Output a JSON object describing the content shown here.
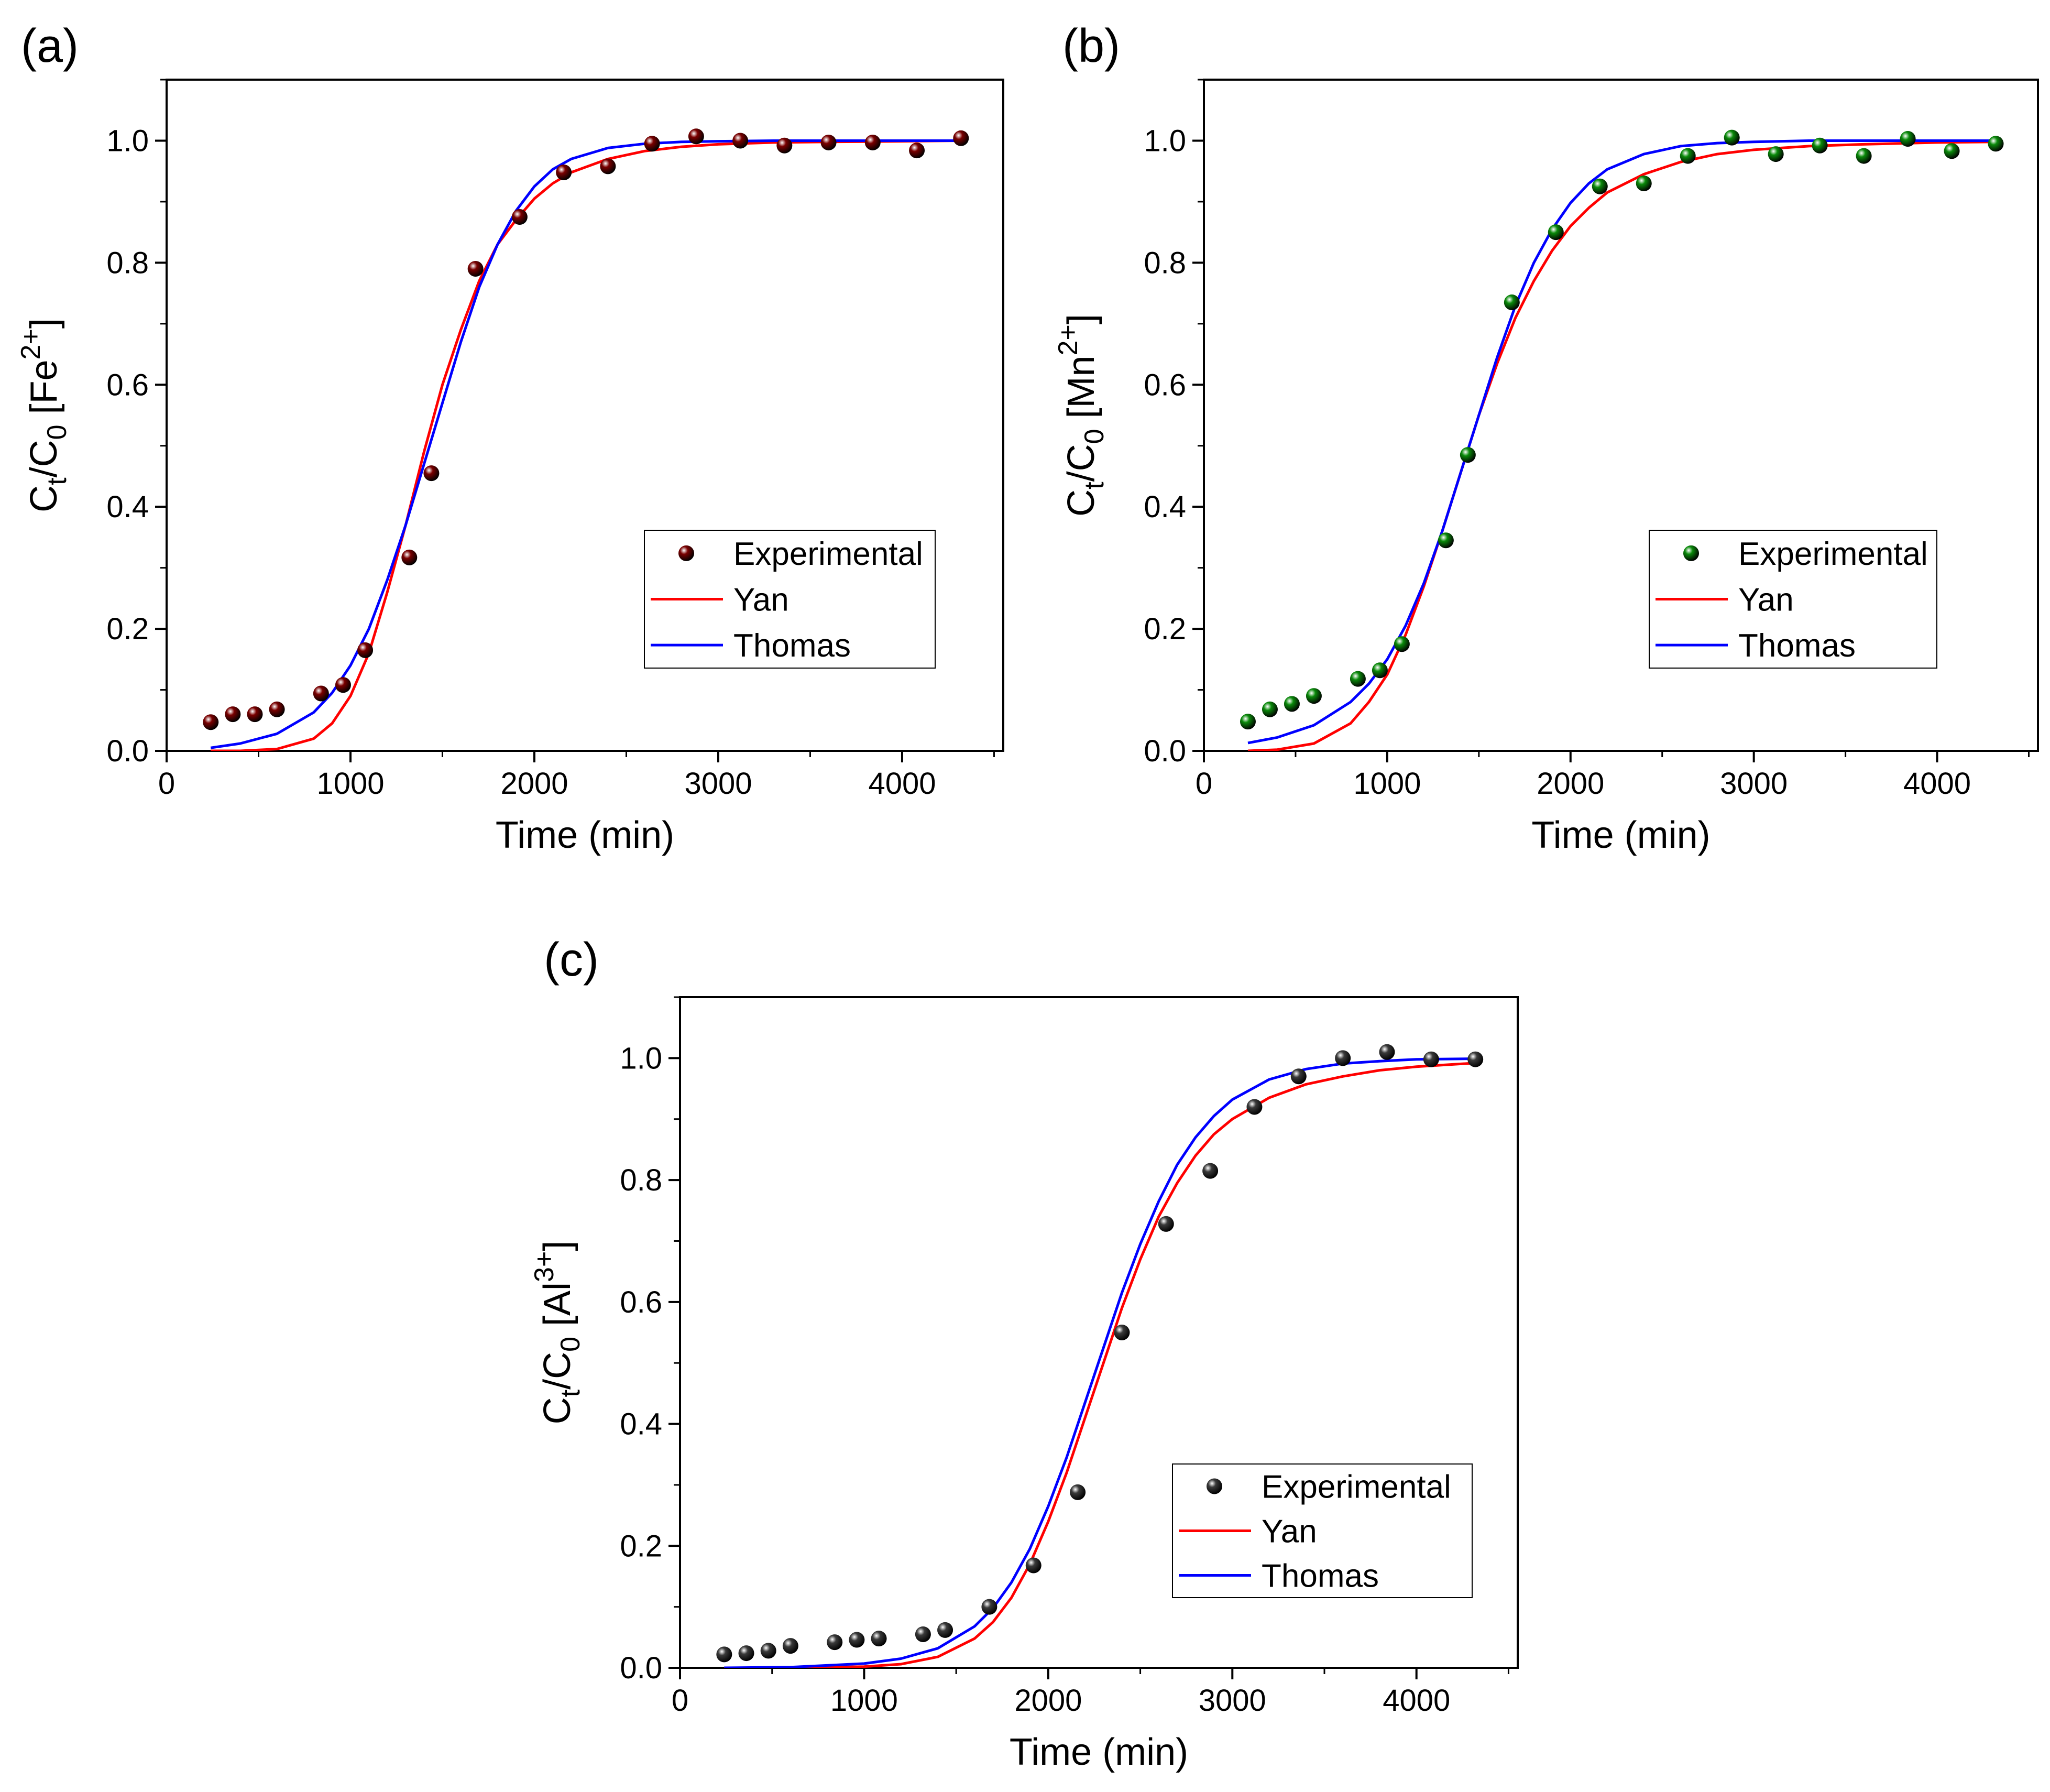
{
  "chart_data": [
    {
      "type": "scatter",
      "panel_label": "(a)",
      "xlabel": "Time (min)",
      "ylabel": {
        "main": "C",
        "sub_t": "t",
        "slash": "/C",
        "sub_0": "0",
        "bracket_open": " [Fe",
        "sup": "2+",
        "bracket_close": "]"
      },
      "xlim": [
        0,
        4550
      ],
      "ylim": [
        0,
        1.1
      ],
      "xticks": [
        "0",
        "1000",
        "2000",
        "3000",
        "4000"
      ],
      "yticks": [
        "0.0",
        "0.2",
        "0.4",
        "0.6",
        "0.8",
        "1.0"
      ],
      "legend": {
        "position": "lower-right",
        "entries": [
          "Experimental",
          "Yan",
          "Thomas"
        ]
      },
      "colors": {
        "experimental": "#7a0000",
        "yan": "#ff0000",
        "thomas": "#0000ff"
      },
      "series": [
        {
          "name": "Experimental",
          "kind": "points",
          "x": [
            240,
            360,
            480,
            600,
            840,
            960,
            1080,
            1320,
            1440,
            1680,
            1920,
            2160,
            2400,
            2640,
            2880,
            3120,
            3360,
            3600,
            3840,
            4080,
            4320
          ],
          "y": [
            0.047,
            0.06,
            0.06,
            0.068,
            0.094,
            0.108,
            0.165,
            0.317,
            0.455,
            0.79,
            0.875,
            0.948,
            0.958,
            0.995,
            1.007,
            1.0,
            0.992,
            0.997,
            0.997,
            0.984,
            1.004
          ]
        },
        {
          "name": "Yan",
          "kind": "line",
          "x": [
            240,
            400,
            600,
            800,
            900,
            1000,
            1100,
            1200,
            1300,
            1400,
            1500,
            1600,
            1700,
            1800,
            1900,
            2000,
            2100,
            2200,
            2400,
            2600,
            2800,
            3000,
            3300,
            3600,
            4000,
            4320
          ],
          "y": [
            0.0,
            0.0,
            0.003,
            0.02,
            0.045,
            0.09,
            0.16,
            0.26,
            0.37,
            0.49,
            0.6,
            0.69,
            0.77,
            0.83,
            0.87,
            0.905,
            0.93,
            0.948,
            0.97,
            0.983,
            0.99,
            0.994,
            0.997,
            0.998,
            0.999,
            1.0
          ]
        },
        {
          "name": "Thomas",
          "kind": "line",
          "x": [
            240,
            400,
            600,
            800,
            900,
            1000,
            1100,
            1200,
            1300,
            1400,
            1500,
            1600,
            1700,
            1800,
            1900,
            2000,
            2100,
            2200,
            2400,
            2600,
            2800,
            3000,
            3300,
            3600,
            4000,
            4320
          ],
          "y": [
            0.005,
            0.012,
            0.028,
            0.063,
            0.095,
            0.14,
            0.2,
            0.28,
            0.37,
            0.47,
            0.57,
            0.67,
            0.76,
            0.83,
            0.885,
            0.925,
            0.953,
            0.97,
            0.988,
            0.995,
            0.998,
            0.999,
            1.0,
            1.0,
            1.0,
            1.0
          ]
        }
      ]
    },
    {
      "type": "scatter",
      "panel_label": "(b)",
      "xlabel": "Time (min)",
      "ylabel": {
        "main": "C",
        "sub_t": "t",
        "slash": "/C",
        "sub_0": "0",
        "bracket_open": " [Mn",
        "sup": "2+",
        "bracket_close": "]"
      },
      "xlim": [
        0,
        4550
      ],
      "ylim": [
        0,
        1.1
      ],
      "xticks": [
        "0",
        "1000",
        "2000",
        "3000",
        "4000"
      ],
      "yticks": [
        "0.0",
        "0.2",
        "0.4",
        "0.6",
        "0.8",
        "1.0"
      ],
      "legend": {
        "position": "lower-right",
        "entries": [
          "Experimental",
          "Yan",
          "Thomas"
        ]
      },
      "colors": {
        "experimental": "#0a8a0a",
        "yan": "#ff0000",
        "thomas": "#0000ff"
      },
      "series": [
        {
          "name": "Experimental",
          "kind": "points",
          "x": [
            240,
            360,
            480,
            600,
            840,
            960,
            1080,
            1320,
            1440,
            1680,
            1920,
            2160,
            2400,
            2640,
            2880,
            3120,
            3360,
            3600,
            3840,
            4080,
            4320
          ],
          "y": [
            0.048,
            0.068,
            0.077,
            0.09,
            0.118,
            0.132,
            0.175,
            0.345,
            0.485,
            0.735,
            0.85,
            0.925,
            0.93,
            0.975,
            1.005,
            0.978,
            0.992,
            0.975,
            1.003,
            0.983,
            0.995
          ]
        },
        {
          "name": "Yan",
          "kind": "line",
          "x": [
            240,
            400,
            600,
            800,
            900,
            1000,
            1100,
            1200,
            1300,
            1400,
            1500,
            1600,
            1700,
            1800,
            1900,
            2000,
            2100,
            2200,
            2400,
            2600,
            2800,
            3000,
            3300,
            3600,
            4000,
            4320
          ],
          "y": [
            0.0,
            0.002,
            0.012,
            0.045,
            0.08,
            0.125,
            0.19,
            0.27,
            0.36,
            0.455,
            0.55,
            0.635,
            0.71,
            0.77,
            0.82,
            0.86,
            0.89,
            0.915,
            0.945,
            0.965,
            0.978,
            0.985,
            0.991,
            0.994,
            0.997,
            0.998
          ]
        },
        {
          "name": "Thomas",
          "kind": "line",
          "x": [
            240,
            400,
            600,
            800,
            900,
            1000,
            1100,
            1200,
            1300,
            1400,
            1500,
            1600,
            1700,
            1800,
            1900,
            2000,
            2100,
            2200,
            2400,
            2600,
            2800,
            3000,
            3300,
            3600,
            4000,
            4320
          ],
          "y": [
            0.013,
            0.022,
            0.042,
            0.08,
            0.11,
            0.15,
            0.205,
            0.275,
            0.36,
            0.455,
            0.55,
            0.645,
            0.73,
            0.8,
            0.855,
            0.898,
            0.93,
            0.953,
            0.978,
            0.991,
            0.996,
            0.998,
            1.0,
            1.0,
            1.0,
            1.0
          ]
        }
      ]
    },
    {
      "type": "scatter",
      "panel_label": "(c)",
      "xlabel": "Time (min)",
      "ylabel": {
        "main": "C",
        "sub_t": "t",
        "slash": "/C",
        "sub_0": "0",
        "bracket_open": " [Al",
        "sup": "3+",
        "bracket_close": "]"
      },
      "xlim": [
        0,
        4550
      ],
      "ylim": [
        0,
        1.1
      ],
      "xticks": [
        "0",
        "1000",
        "2000",
        "3000",
        "4000"
      ],
      "yticks": [
        "0.0",
        "0.2",
        "0.4",
        "0.6",
        "0.8",
        "1.0"
      ],
      "legend": {
        "position": "lower-right",
        "entries": [
          "Experimental",
          "Yan",
          "Thomas"
        ]
      },
      "colors": {
        "experimental": "#3a3a3a",
        "yan": "#ff0000",
        "thomas": "#0000ff"
      },
      "series": [
        {
          "name": "Experimental",
          "kind": "points",
          "x": [
            240,
            360,
            480,
            600,
            840,
            960,
            1080,
            1320,
            1440,
            1680,
            1920,
            2160,
            2400,
            2640,
            2880,
            3120,
            3360,
            3600,
            3840,
            4080,
            4320
          ],
          "y": [
            0.022,
            0.024,
            0.028,
            0.036,
            0.042,
            0.046,
            0.048,
            0.055,
            0.062,
            0.1,
            0.168,
            0.288,
            0.55,
            0.728,
            0.815,
            0.92,
            0.97,
            1.0,
            1.01,
            0.998,
            0.998
          ]
        },
        {
          "name": "Yan",
          "kind": "line",
          "x": [
            240,
            600,
            1000,
            1200,
            1400,
            1600,
            1700,
            1800,
            1900,
            2000,
            2100,
            2200,
            2300,
            2400,
            2500,
            2600,
            2700,
            2800,
            2900,
            3000,
            3200,
            3400,
            3600,
            3800,
            4000,
            4320
          ],
          "y": [
            0.0,
            0.0,
            0.002,
            0.006,
            0.018,
            0.048,
            0.075,
            0.115,
            0.17,
            0.24,
            0.32,
            0.41,
            0.5,
            0.59,
            0.67,
            0.74,
            0.795,
            0.84,
            0.875,
            0.9,
            0.935,
            0.957,
            0.97,
            0.98,
            0.986,
            0.992
          ]
        },
        {
          "name": "Thomas",
          "kind": "line",
          "x": [
            240,
            600,
            1000,
            1200,
            1400,
            1600,
            1700,
            1800,
            1900,
            2000,
            2100,
            2200,
            2300,
            2400,
            2500,
            2600,
            2700,
            2800,
            2900,
            3000,
            3200,
            3400,
            3600,
            3800,
            4000,
            4320
          ],
          "y": [
            0.0,
            0.001,
            0.007,
            0.015,
            0.032,
            0.068,
            0.098,
            0.14,
            0.195,
            0.265,
            0.345,
            0.435,
            0.525,
            0.615,
            0.695,
            0.765,
            0.825,
            0.87,
            0.905,
            0.932,
            0.965,
            0.982,
            0.991,
            0.995,
            0.998,
            0.999
          ]
        }
      ]
    }
  ]
}
